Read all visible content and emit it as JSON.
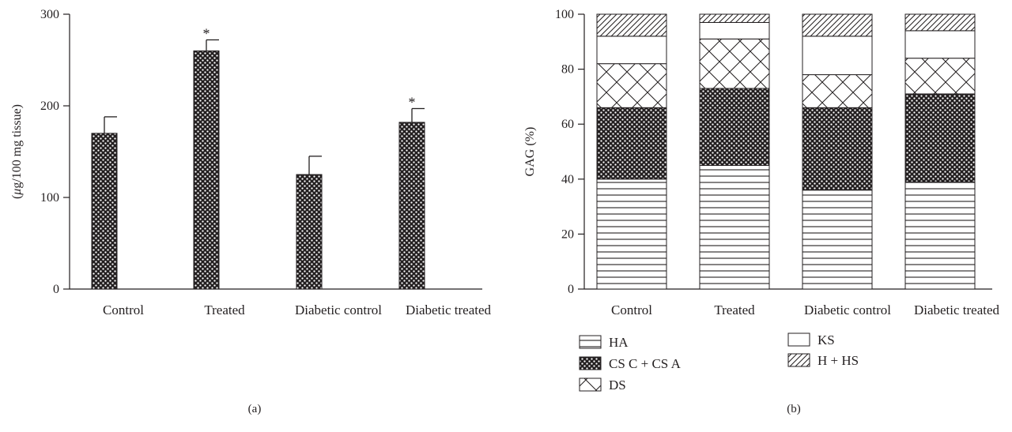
{
  "chart_data": [
    {
      "type": "bar",
      "panel_label": "(a)",
      "ylabel_prefix": "(",
      "ylabel_mu": "μ",
      "ylabel_rest": "g/100 mg tissue)",
      "ylim": [
        0,
        300
      ],
      "yticks": [
        "0",
        "100",
        "200",
        "300"
      ],
      "categories": [
        "Control",
        "Treated",
        "Diabetic control",
        "Diabetic treated"
      ],
      "values": [
        170,
        260,
        125,
        182
      ],
      "errors": [
        18,
        12,
        20,
        15
      ],
      "significance": [
        "",
        "*",
        "",
        "*"
      ],
      "grid": false
    },
    {
      "type": "bar",
      "stacked": true,
      "panel_label": "(b)",
      "ylabel": "GAG (%)",
      "ylim": [
        0,
        100
      ],
      "yticks": [
        "0",
        "20",
        "40",
        "60",
        "80",
        "100"
      ],
      "categories": [
        "Control",
        "Treated",
        "Diabetic control",
        "Diabetic treated"
      ],
      "series": [
        {
          "name": "HA",
          "pattern": "hlines",
          "values": [
            40,
            45,
            36,
            39
          ]
        },
        {
          "name": "CS C + CS A",
          "pattern": "dots",
          "values": [
            26,
            28,
            30,
            32
          ]
        },
        {
          "name": "DS",
          "pattern": "cross",
          "values": [
            16,
            18,
            12,
            13
          ]
        },
        {
          "name": "KS",
          "pattern": "blank",
          "values": [
            10,
            6,
            14,
            10
          ]
        },
        {
          "name": "H + HS",
          "pattern": "diag",
          "values": [
            8,
            3,
            8,
            6
          ]
        }
      ],
      "legend_position": "bottom",
      "grid": false
    }
  ]
}
